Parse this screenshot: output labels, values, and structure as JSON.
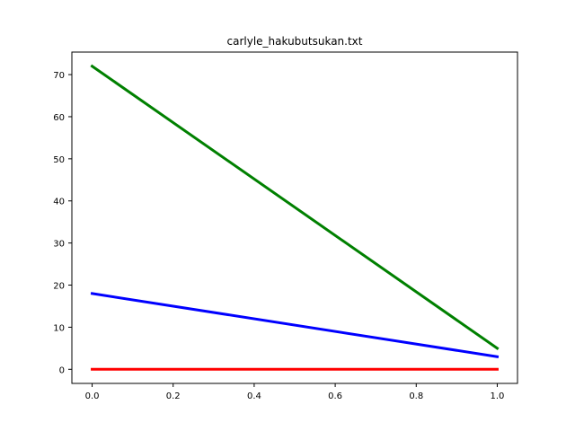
{
  "chart_data": {
    "type": "line",
    "title": "carlyle_hakubutsukan.txt",
    "xlabel": "",
    "ylabel": "",
    "xlim": [
      -0.05,
      1.05
    ],
    "ylim": [
      -3.35,
      75.35
    ],
    "x_ticks": [
      0.0,
      0.2,
      0.4,
      0.6,
      0.8,
      1.0
    ],
    "x_tick_labels": [
      "0.0",
      "0.2",
      "0.4",
      "0.6",
      "0.8",
      "1.0"
    ],
    "y_ticks": [
      0,
      10,
      20,
      30,
      40,
      50,
      60,
      70
    ],
    "y_tick_labels": [
      "0",
      "10",
      "20",
      "30",
      "40",
      "50",
      "60",
      "70"
    ],
    "grid": false,
    "legend": "none",
    "x": [
      0.0,
      1.0
    ],
    "series": [
      {
        "values": [
          72,
          5
        ],
        "color": "#008000"
      },
      {
        "values": [
          18,
          3
        ],
        "color": "#0000ff"
      },
      {
        "values": [
          0,
          0
        ],
        "color": "#ff0000"
      }
    ]
  }
}
